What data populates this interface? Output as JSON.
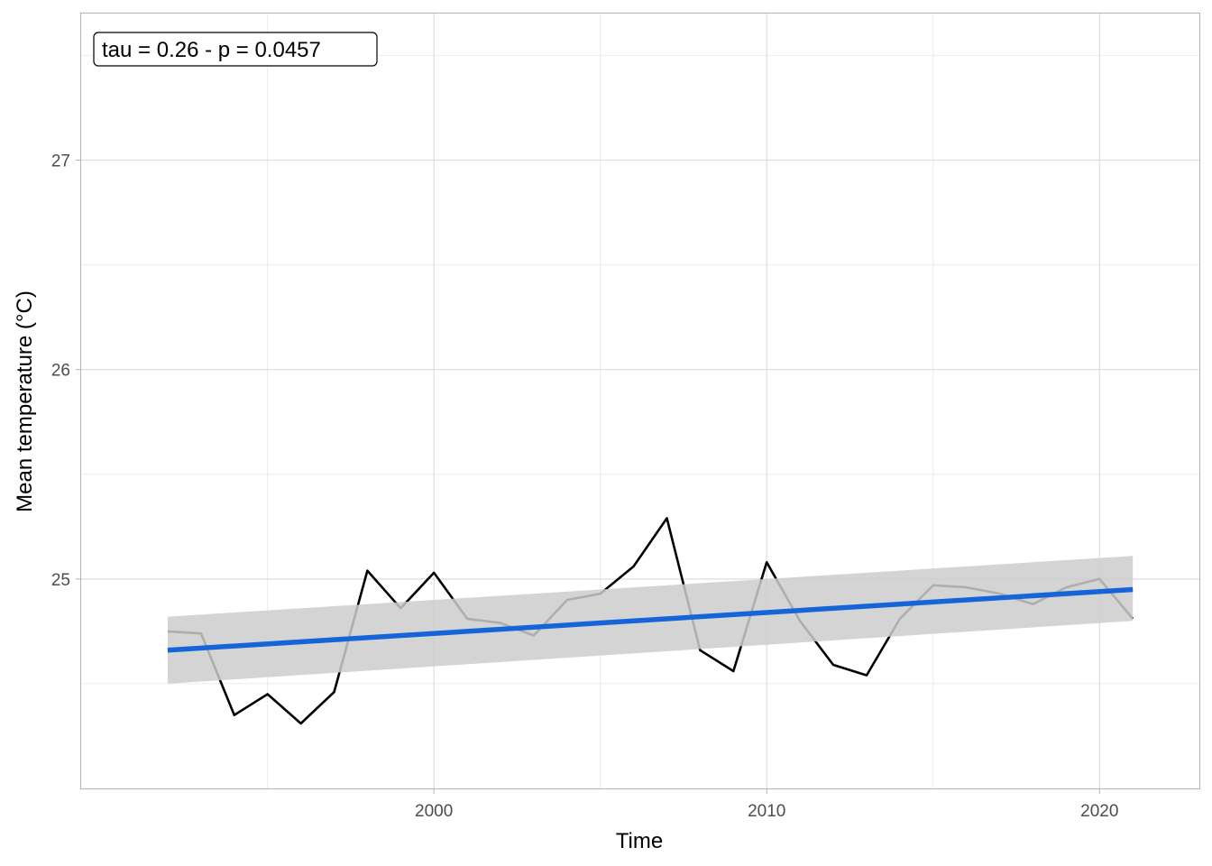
{
  "chart_data": {
    "type": "line",
    "title": "",
    "xlabel": "Time",
    "ylabel": "Mean temperature (°C)",
    "annotation": "tau = 0.26 - p = 0.0457",
    "xlim": [
      1989.4,
      2023.0
    ],
    "ylim": [
      24.0,
      27.7
    ],
    "x_ticks": [
      2000,
      2010,
      2020
    ],
    "y_ticks": [
      25,
      26,
      27
    ],
    "grid": true,
    "series": [
      {
        "x": [
          1992,
          1993,
          1994,
          1995,
          1996,
          1997,
          1998,
          1999,
          2000,
          2001,
          2002,
          2003,
          2004,
          2005,
          2006,
          2007,
          2008,
          2009,
          2010,
          2011,
          2012,
          2013,
          2014,
          2015,
          2016,
          2017,
          2018,
          2019,
          2020,
          2021
        ],
        "y": [
          24.75,
          24.74,
          24.35,
          24.45,
          24.31,
          24.46,
          25.04,
          24.86,
          25.03,
          24.81,
          24.79,
          24.73,
          24.9,
          24.93,
          25.06,
          25.29,
          24.66,
          24.56,
          25.08,
          24.8,
          24.59,
          24.54,
          24.81,
          24.97,
          24.96,
          24.93,
          24.88,
          24.96,
          25.0,
          24.81
        ]
      }
    ],
    "trend": {
      "x": [
        1992,
        2021
      ],
      "y": [
        24.66,
        24.95
      ],
      "band_lower": [
        24.5,
        24.8
      ],
      "band_upper": [
        24.82,
        25.11
      ],
      "color": "#1565d8",
      "band_color": "#cccccc"
    },
    "line_color": "#000000"
  }
}
